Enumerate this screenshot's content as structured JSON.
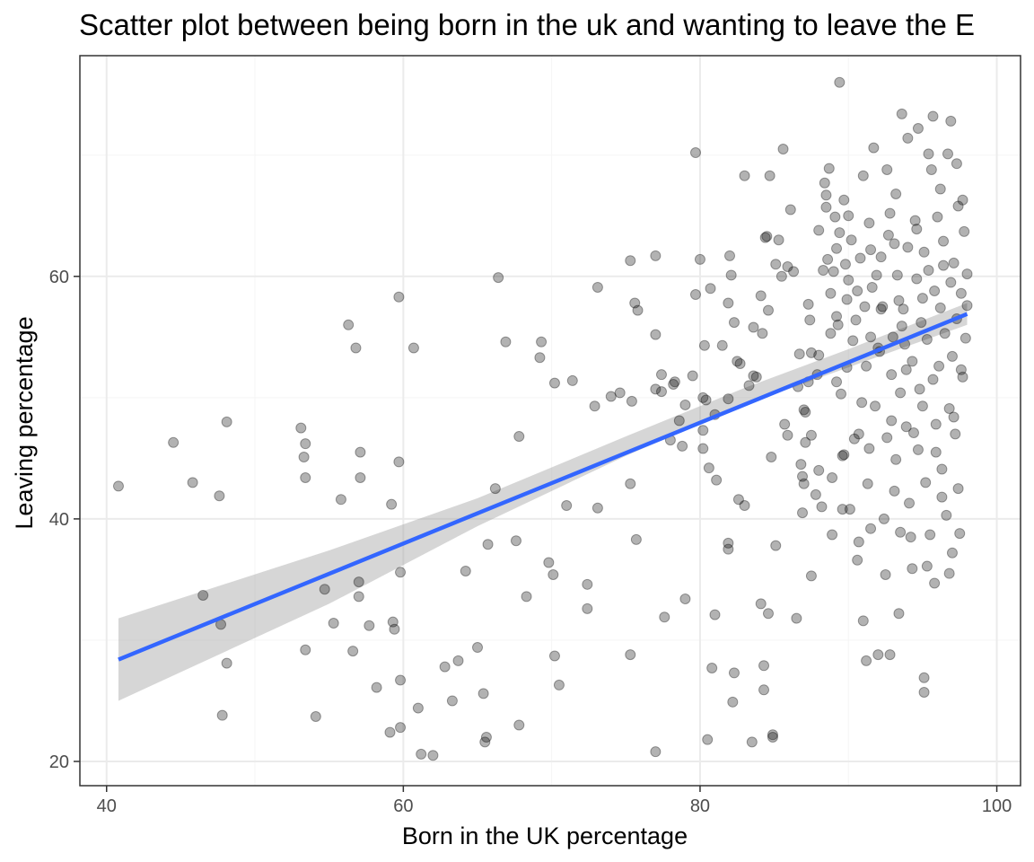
{
  "chart_data": {
    "type": "scatter",
    "title": "Scatter plot between being born in the uk and wanting to leave the E",
    "xlabel": "Born in the UK percentage",
    "ylabel": "Leaving percentage",
    "xlim": [
      38.2,
      101.6
    ],
    "ylim": [
      18.0,
      78.2
    ],
    "xticks": [
      40,
      60,
      80,
      100
    ],
    "yticks": [
      20,
      40,
      60
    ],
    "xticks_minor": [
      50,
      70,
      90
    ],
    "yticks_minor": [
      30,
      50,
      70
    ],
    "grid": true,
    "legend": "none",
    "colors": {
      "points": "#000000",
      "fit_line": "#3366ff",
      "ribbon": "#999999",
      "panel_border": "#333333",
      "grid_major": "#ebebeb",
      "grid_minor": "#f5f5f5",
      "tick_label": "#4d4d4d"
    },
    "fit": {
      "method": "lm",
      "x": [
        40.8,
        98.0
      ],
      "y": [
        28.4,
        56.9
      ],
      "se_ribbon": [
        {
          "x": 40.8,
          "lower": 25.0,
          "upper": 31.8
        },
        {
          "x": 55,
          "lower": 33.0,
          "upper": 37.4
        },
        {
          "x": 65,
          "lower": 39.4,
          "upper": 41.7
        },
        {
          "x": 75,
          "lower": 45.2,
          "upper": 46.8
        },
        {
          "x": 83,
          "lower": 49.4,
          "upper": 50.8
        },
        {
          "x": 90,
          "lower": 52.5,
          "upper": 54.0
        },
        {
          "x": 98.0,
          "lower": 56.0,
          "upper": 57.8
        }
      ]
    },
    "points": [
      [
        40.8,
        42.7
      ],
      [
        44.5,
        46.3
      ],
      [
        45.8,
        43.0
      ],
      [
        46.5,
        33.7
      ],
      [
        47.6,
        41.9
      ],
      [
        47.7,
        31.3
      ],
      [
        47.8,
        23.8
      ],
      [
        48.1,
        48.0
      ],
      [
        48.1,
        28.1
      ],
      [
        53.1,
        47.5
      ],
      [
        53.3,
        45.1
      ],
      [
        53.4,
        46.2
      ],
      [
        53.4,
        43.4
      ],
      [
        53.4,
        29.2
      ],
      [
        54.1,
        23.7
      ],
      [
        54.7,
        34.2
      ],
      [
        55.3,
        31.4
      ],
      [
        55.8,
        41.6
      ],
      [
        56.3,
        56.0
      ],
      [
        56.6,
        29.1
      ],
      [
        56.8,
        54.1
      ],
      [
        57.0,
        34.8
      ],
      [
        57.0,
        33.6
      ],
      [
        57.1,
        45.5
      ],
      [
        57.1,
        43.4
      ],
      [
        57.7,
        31.2
      ],
      [
        58.2,
        26.1
      ],
      [
        59.1,
        22.4
      ],
      [
        59.2,
        41.2
      ],
      [
        59.3,
        31.5
      ],
      [
        59.4,
        30.9
      ],
      [
        59.7,
        58.3
      ],
      [
        59.7,
        44.7
      ],
      [
        59.8,
        35.6
      ],
      [
        59.8,
        26.7
      ],
      [
        59.8,
        22.8
      ],
      [
        60.7,
        54.1
      ],
      [
        61.0,
        24.4
      ],
      [
        61.2,
        20.6
      ],
      [
        62.0,
        20.5
      ],
      [
        62.8,
        27.8
      ],
      [
        63.3,
        25.0
      ],
      [
        63.7,
        28.3
      ],
      [
        64.2,
        35.7
      ],
      [
        65.0,
        29.4
      ],
      [
        65.4,
        25.6
      ],
      [
        65.5,
        21.6
      ],
      [
        65.6,
        22.0
      ],
      [
        65.7,
        37.9
      ],
      [
        66.2,
        42.5
      ],
      [
        66.4,
        59.9
      ],
      [
        66.9,
        54.6
      ],
      [
        67.6,
        38.2
      ],
      [
        67.8,
        46.8
      ],
      [
        67.8,
        23.0
      ],
      [
        68.3,
        33.6
      ],
      [
        69.2,
        53.3
      ],
      [
        69.3,
        54.6
      ],
      [
        69.8,
        36.4
      ],
      [
        70.1,
        35.4
      ],
      [
        70.2,
        51.2
      ],
      [
        70.2,
        28.7
      ],
      [
        70.5,
        26.3
      ],
      [
        71.0,
        41.1
      ],
      [
        71.4,
        51.4
      ],
      [
        72.4,
        32.6
      ],
      [
        72.4,
        34.6
      ],
      [
        72.9,
        49.3
      ],
      [
        73.1,
        59.1
      ],
      [
        73.1,
        40.9
      ],
      [
        74.0,
        50.1
      ],
      [
        74.6,
        50.4
      ],
      [
        75.3,
        61.3
      ],
      [
        75.3,
        42.9
      ],
      [
        75.3,
        28.8
      ],
      [
        75.4,
        49.7
      ],
      [
        75.6,
        57.8
      ],
      [
        75.7,
        38.3
      ],
      [
        75.8,
        57.2
      ],
      [
        77.0,
        61.7
      ],
      [
        77.0,
        55.2
      ],
      [
        77.0,
        50.7
      ],
      [
        77.0,
        20.8
      ],
      [
        77.4,
        51.9
      ],
      [
        77.4,
        50.5
      ],
      [
        77.6,
        31.9
      ],
      [
        78.0,
        46.5
      ],
      [
        78.2,
        51.1
      ],
      [
        78.3,
        51.3
      ],
      [
        78.6,
        48.1
      ],
      [
        78.8,
        46.0
      ],
      [
        79.0,
        49.4
      ],
      [
        79.0,
        33.4
      ],
      [
        79.5,
        51.8
      ],
      [
        79.7,
        58.5
      ],
      [
        79.7,
        70.2
      ],
      [
        80.0,
        61.4
      ],
      [
        80.2,
        50.0
      ],
      [
        80.2,
        47.3
      ],
      [
        80.2,
        45.8
      ],
      [
        80.3,
        54.3
      ],
      [
        80.4,
        49.8
      ],
      [
        80.5,
        21.8
      ],
      [
        80.6,
        44.2
      ],
      [
        80.7,
        59.0
      ],
      [
        80.8,
        27.7
      ],
      [
        81.0,
        48.6
      ],
      [
        81.0,
        32.1
      ],
      [
        81.1,
        43.2
      ],
      [
        81.5,
        54.3
      ],
      [
        81.9,
        57.8
      ],
      [
        81.9,
        49.9
      ],
      [
        81.9,
        37.5
      ],
      [
        81.9,
        38.0
      ],
      [
        82.0,
        61.7
      ],
      [
        82.1,
        60.1
      ],
      [
        82.2,
        24.9
      ],
      [
        82.3,
        56.2
      ],
      [
        82.3,
        27.3
      ],
      [
        82.5,
        53.0
      ],
      [
        82.6,
        41.6
      ],
      [
        82.7,
        52.8
      ],
      [
        83.0,
        68.3
      ],
      [
        83.0,
        41.1
      ],
      [
        83.3,
        51.0
      ],
      [
        83.5,
        21.6
      ],
      [
        83.6,
        51.8
      ],
      [
        83.6,
        55.8
      ],
      [
        83.8,
        51.7
      ],
      [
        84.1,
        58.4
      ],
      [
        84.1,
        33.0
      ],
      [
        84.2,
        55.3
      ],
      [
        84.3,
        25.9
      ],
      [
        84.3,
        27.9
      ],
      [
        84.4,
        63.2
      ],
      [
        84.5,
        63.3
      ],
      [
        84.6,
        57.2
      ],
      [
        84.6,
        32.2
      ],
      [
        84.7,
        68.3
      ],
      [
        84.8,
        45.1
      ],
      [
        84.9,
        22.0
      ],
      [
        84.9,
        22.2
      ],
      [
        85.1,
        61.0
      ],
      [
        85.1,
        37.8
      ],
      [
        85.3,
        63.0
      ],
      [
        85.5,
        60.0
      ],
      [
        85.6,
        70.5
      ],
      [
        85.7,
        47.8
      ],
      [
        85.9,
        46.9
      ],
      [
        85.9,
        60.8
      ],
      [
        86.1,
        65.5
      ],
      [
        86.3,
        60.4
      ],
      [
        86.5,
        31.8
      ],
      [
        86.6,
        50.9
      ],
      [
        86.7,
        53.6
      ],
      [
        86.8,
        44.5
      ],
      [
        86.9,
        40.5
      ],
      [
        86.9,
        43.5
      ],
      [
        87.0,
        49.0
      ],
      [
        87.0,
        42.9
      ],
      [
        87.1,
        46.3
      ],
      [
        87.1,
        48.8
      ],
      [
        87.3,
        51.3
      ],
      [
        87.3,
        57.7
      ],
      [
        87.4,
        56.4
      ],
      [
        87.5,
        53.7
      ],
      [
        87.5,
        35.3
      ],
      [
        87.5,
        46.9
      ],
      [
        87.8,
        42.0
      ],
      [
        87.9,
        51.9
      ],
      [
        88.0,
        44.0
      ],
      [
        88.0,
        53.5
      ],
      [
        88.2,
        41.0
      ],
      [
        88.3,
        60.5
      ],
      [
        88.4,
        67.7
      ],
      [
        88.5,
        66.7
      ],
      [
        88.5,
        65.7
      ],
      [
        88.6,
        61.4
      ],
      [
        88.8,
        58.6
      ],
      [
        88.8,
        55.3
      ],
      [
        88.9,
        38.7
      ],
      [
        88.9,
        43.4
      ],
      [
        89.0,
        60.4
      ],
      [
        89.1,
        64.9
      ],
      [
        89.2,
        56.7
      ],
      [
        89.2,
        51.3
      ],
      [
        89.4,
        76.0
      ],
      [
        89.4,
        63.6
      ],
      [
        89.5,
        50.3
      ],
      [
        89.6,
        45.2
      ],
      [
        89.6,
        40.8
      ],
      [
        89.7,
        66.3
      ],
      [
        89.8,
        61.0
      ],
      [
        89.9,
        58.1
      ],
      [
        89.9,
        52.5
      ],
      [
        90.0,
        59.7
      ],
      [
        90.1,
        40.8
      ],
      [
        90.2,
        63.0
      ],
      [
        90.4,
        46.6
      ],
      [
        90.5,
        56.4
      ],
      [
        90.6,
        36.6
      ],
      [
        90.7,
        47.0
      ],
      [
        90.8,
        61.5
      ],
      [
        91.0,
        68.3
      ],
      [
        91.0,
        31.6
      ],
      [
        91.1,
        57.5
      ],
      [
        91.2,
        52.6
      ],
      [
        91.3,
        42.9
      ],
      [
        91.4,
        64.4
      ],
      [
        91.5,
        39.2
      ],
      [
        91.5,
        55.0
      ],
      [
        91.7,
        70.6
      ],
      [
        91.8,
        49.3
      ],
      [
        91.9,
        60.1
      ],
      [
        92.0,
        28.8
      ],
      [
        92.0,
        54.1
      ],
      [
        92.2,
        61.6
      ],
      [
        92.3,
        57.5
      ],
      [
        92.5,
        35.4
      ],
      [
        92.6,
        46.7
      ],
      [
        92.7,
        63.4
      ],
      [
        92.9,
        51.9
      ],
      [
        93.0,
        55.0
      ],
      [
        93.1,
        42.3
      ],
      [
        93.2,
        66.8
      ],
      [
        93.3,
        60.1
      ],
      [
        93.4,
        58.0
      ],
      [
        93.5,
        50.4
      ],
      [
        93.5,
        38.9
      ],
      [
        93.6,
        73.4
      ],
      [
        93.7,
        57.3
      ],
      [
        93.8,
        54.4
      ],
      [
        93.9,
        47.6
      ],
      [
        94.0,
        62.4
      ],
      [
        94.1,
        41.3
      ],
      [
        94.3,
        35.9
      ],
      [
        94.3,
        53.0
      ],
      [
        94.5,
        64.6
      ],
      [
        94.6,
        59.8
      ],
      [
        94.7,
        45.7
      ],
      [
        94.7,
        72.2
      ],
      [
        94.9,
        56.2
      ],
      [
        95.0,
        49.3
      ],
      [
        95.1,
        62.0
      ],
      [
        95.2,
        43.0
      ],
      [
        95.3,
        54.8
      ],
      [
        95.4,
        60.5
      ],
      [
        95.5,
        38.7
      ],
      [
        95.6,
        68.8
      ],
      [
        95.7,
        51.5
      ],
      [
        95.8,
        58.8
      ],
      [
        95.9,
        47.8
      ],
      [
        96.0,
        64.9
      ],
      [
        96.1,
        52.6
      ],
      [
        96.2,
        57.4
      ],
      [
        96.3,
        44.1
      ],
      [
        96.4,
        62.9
      ],
      [
        96.5,
        55.3
      ],
      [
        96.6,
        40.3
      ],
      [
        96.7,
        70.1
      ],
      [
        96.8,
        49.1
      ],
      [
        96.9,
        59.5
      ],
      [
        97.0,
        53.4
      ],
      [
        97.1,
        61.1
      ],
      [
        97.2,
        47.0
      ],
      [
        97.3,
        56.5
      ],
      [
        97.4,
        65.8
      ],
      [
        97.5,
        38.8
      ],
      [
        97.6,
        58.6
      ],
      [
        97.7,
        51.7
      ],
      [
        97.8,
        63.7
      ],
      [
        97.9,
        54.9
      ],
      [
        98.0,
        60.2
      ],
      [
        97.4,
        42.5
      ],
      [
        96.8,
        35.5
      ],
      [
        95.8,
        34.7
      ],
      [
        95.1,
        26.9
      ],
      [
        95.1,
        25.7
      ],
      [
        94.2,
        38.5
      ],
      [
        93.4,
        32.2
      ],
      [
        92.8,
        28.8
      ],
      [
        91.2,
        28.3
      ],
      [
        90.7,
        38.1
      ],
      [
        92.4,
        40.0
      ],
      [
        93.2,
        44.9
      ],
      [
        94.4,
        47.1
      ],
      [
        95.9,
        45.5
      ],
      [
        97.1,
        48.4
      ],
      [
        96.2,
        67.2
      ],
      [
        95.4,
        70.1
      ],
      [
        94.0,
        71.4
      ],
      [
        92.6,
        68.8
      ],
      [
        96.9,
        72.8
      ],
      [
        95.7,
        73.2
      ],
      [
        97.3,
        69.3
      ],
      [
        98.0,
        57.6
      ],
      [
        97.6,
        52.3
      ],
      [
        94.8,
        50.7
      ],
      [
        93.9,
        52.3
      ],
      [
        92.1,
        53.8
      ],
      [
        91.6,
        59.1
      ],
      [
        90.3,
        54.7
      ],
      [
        89.3,
        56.0
      ],
      [
        90.9,
        49.6
      ],
      [
        92.9,
        48.1
      ],
      [
        96.3,
        41.8
      ],
      [
        97.0,
        37.2
      ],
      [
        95.3,
        36.1
      ],
      [
        89.7,
        45.3
      ],
      [
        91.4,
        45.8
      ],
      [
        93.1,
        62.7
      ],
      [
        94.6,
        63.9
      ],
      [
        96.4,
        60.9
      ],
      [
        97.7,
        66.3
      ],
      [
        95.0,
        58.2
      ],
      [
        93.6,
        55.9
      ],
      [
        92.2,
        57.3
      ],
      [
        90.6,
        58.8
      ],
      [
        89.2,
        62.3
      ],
      [
        88.0,
        63.8
      ],
      [
        88.7,
        68.9
      ],
      [
        90.0,
        65.0
      ],
      [
        91.5,
        62.2
      ],
      [
        92.8,
        65.2
      ]
    ]
  }
}
